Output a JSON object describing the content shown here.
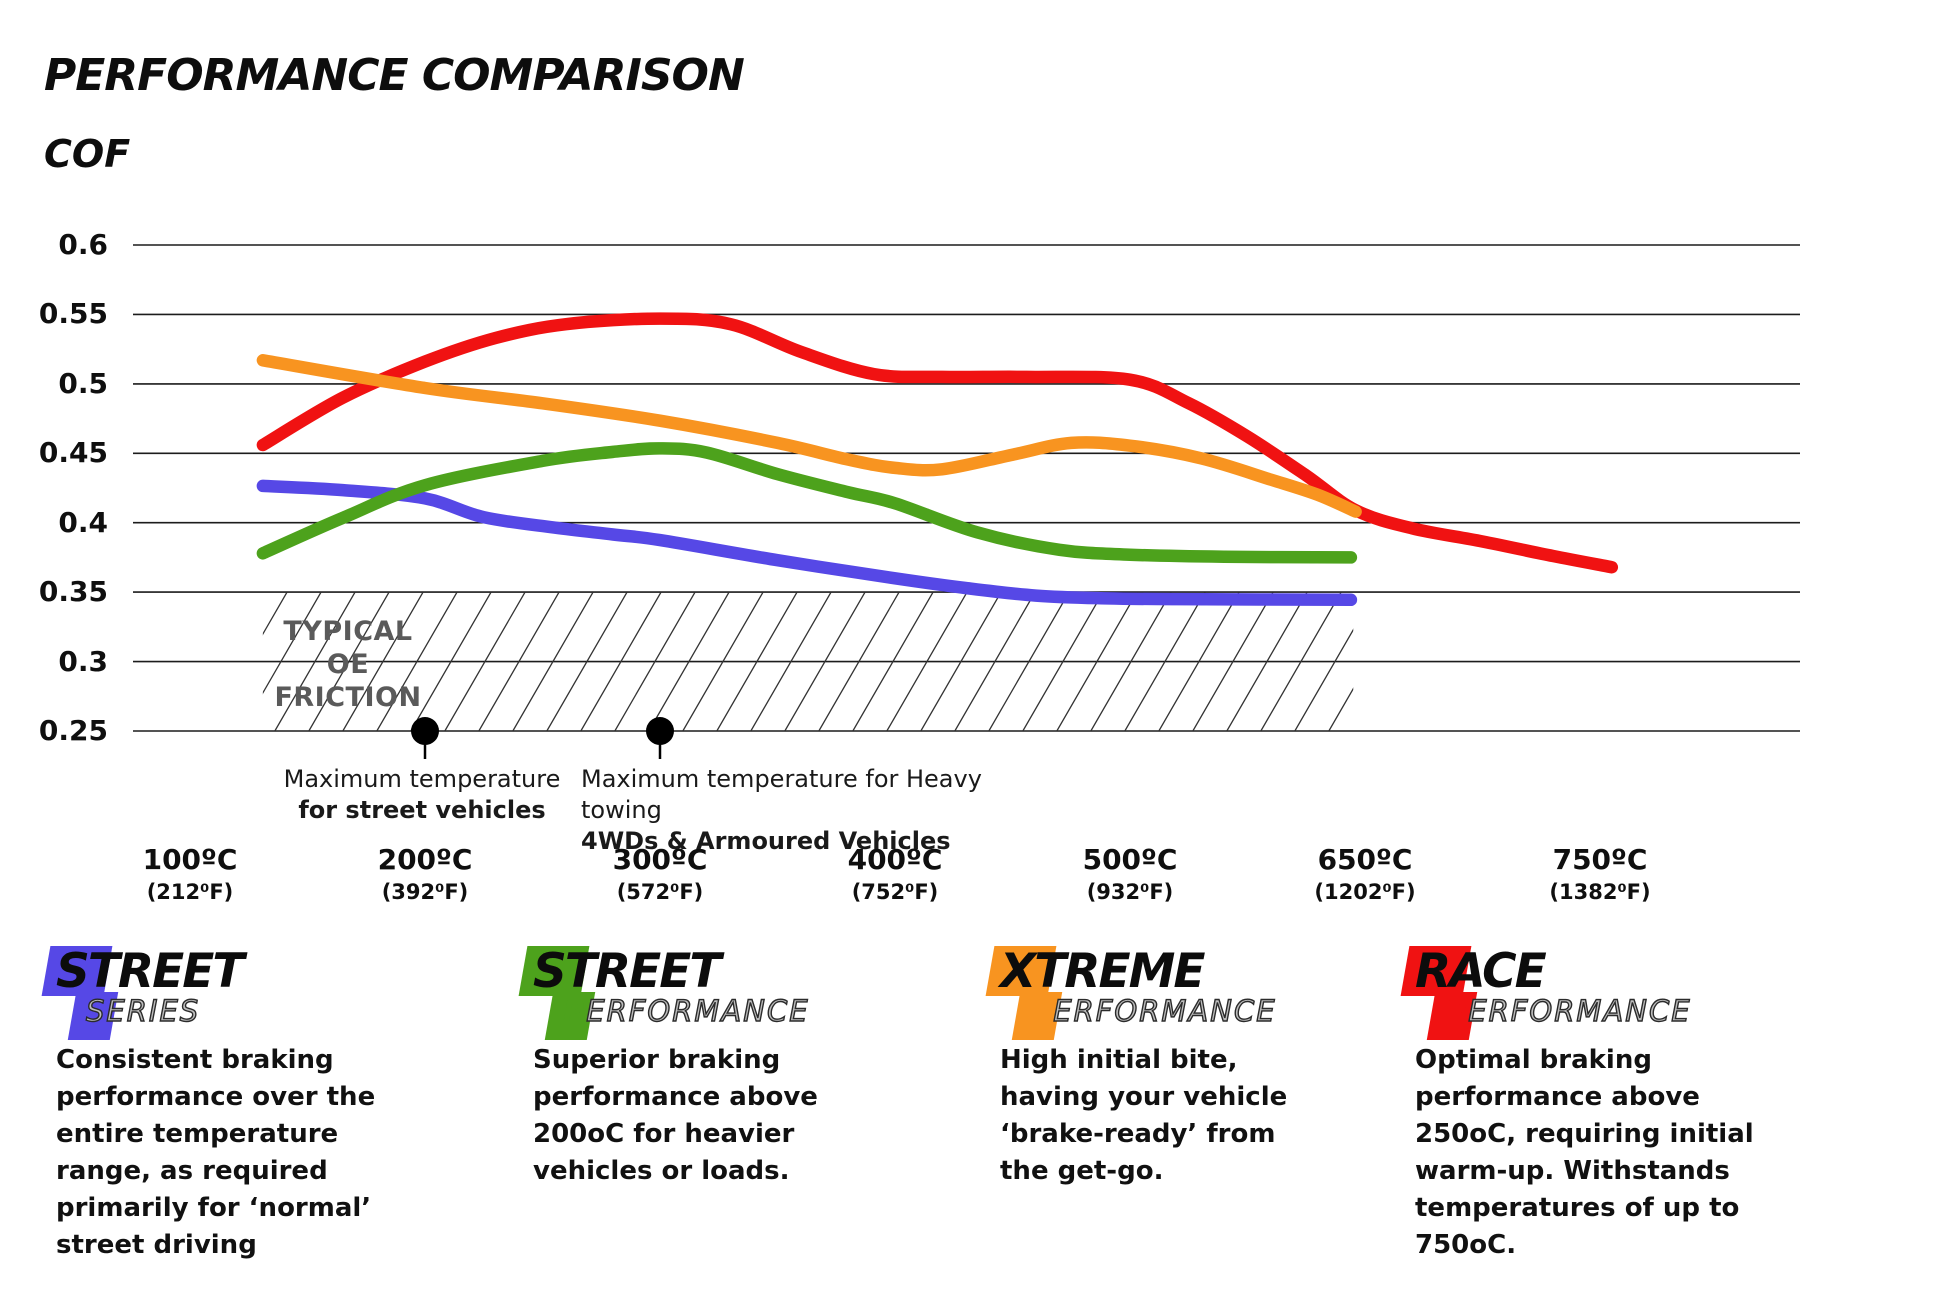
{
  "header": {
    "title": "PERFORMANCE COMPARISON",
    "cof_label": "COF"
  },
  "chart_data": {
    "type": "line",
    "title": "PERFORMANCE COMPARISON",
    "ylabel": "COF",
    "ylim": [
      0.25,
      0.625
    ],
    "grid": "horizontal",
    "y_ticks": [
      "0.6",
      "0.55",
      "0.5",
      "0.45",
      "0.4",
      "0.35",
      "0.3",
      "0.25"
    ],
    "y_tick_values": [
      0.6,
      0.55,
      0.5,
      0.45,
      0.4,
      0.35,
      0.3,
      0.25
    ],
    "x_categories": [
      {
        "c": "100ºC",
        "f": "(212⁰F)"
      },
      {
        "c": "200ºC",
        "f": "(392⁰F)"
      },
      {
        "c": "300ºC",
        "f": "(572⁰F)"
      },
      {
        "c": "400ºC",
        "f": "(752⁰F)"
      },
      {
        "c": "500ºC",
        "f": "(932⁰F)"
      },
      {
        "c": "650ºC",
        "f": "(1202⁰F)"
      },
      {
        "c": "750ºC",
        "f": "(1382⁰F)"
      }
    ],
    "series": [
      {
        "name": "Street Series",
        "color": "#5648e6",
        "points": [
          [
            0.31,
            0.4265
          ],
          [
            0.65,
            0.4235
          ],
          [
            1.0,
            0.4175
          ],
          [
            1.25,
            0.404
          ],
          [
            1.55,
            0.3965
          ],
          [
            1.8,
            0.3915
          ],
          [
            2.0,
            0.3875
          ],
          [
            2.5,
            0.373
          ],
          [
            3.0,
            0.36
          ],
          [
            3.3,
            0.353
          ],
          [
            3.6,
            0.3475
          ],
          [
            3.9,
            0.3455
          ],
          [
            4.2,
            0.345
          ],
          [
            4.94,
            0.3445
          ]
        ]
      },
      {
        "name": "Street Performance",
        "color": "#4da21c",
        "points": [
          [
            0.31,
            0.378
          ],
          [
            0.65,
            0.4035
          ],
          [
            1.0,
            0.427
          ],
          [
            1.5,
            0.4445
          ],
          [
            1.8,
            0.451
          ],
          [
            2.0,
            0.4535
          ],
          [
            2.2,
            0.4505
          ],
          [
            2.5,
            0.435
          ],
          [
            2.8,
            0.422
          ],
          [
            3.0,
            0.414
          ],
          [
            3.35,
            0.393
          ],
          [
            3.7,
            0.3805
          ],
          [
            4.0,
            0.377
          ],
          [
            4.4,
            0.3755
          ],
          [
            4.94,
            0.375
          ]
        ]
      },
      {
        "name": "Race Performance",
        "color": "#f01212",
        "points": [
          [
            0.31,
            0.456
          ],
          [
            0.65,
            0.49
          ],
          [
            1.0,
            0.516
          ],
          [
            1.3,
            0.533
          ],
          [
            1.6,
            0.543
          ],
          [
            2.0,
            0.547
          ],
          [
            2.3,
            0.543
          ],
          [
            2.6,
            0.523
          ],
          [
            2.91,
            0.507
          ],
          [
            3.2,
            0.505
          ],
          [
            3.56,
            0.505
          ],
          [
            4.0,
            0.503
          ],
          [
            4.25,
            0.486
          ],
          [
            4.5,
            0.462
          ],
          [
            4.75,
            0.434
          ],
          [
            4.96,
            0.409
          ],
          [
            5.2,
            0.396
          ],
          [
            5.5,
            0.3865
          ],
          [
            5.8,
            0.376
          ],
          [
            6.05,
            0.368
          ]
        ]
      },
      {
        "name": "Xtreme Performance",
        "color": "#f89420",
        "points": [
          [
            0.31,
            0.517
          ],
          [
            1.0,
            0.497
          ],
          [
            1.5,
            0.486
          ],
          [
            2.0,
            0.4735
          ],
          [
            2.5,
            0.4575
          ],
          [
            2.8,
            0.4455
          ],
          [
            3.0,
            0.4395
          ],
          [
            3.2,
            0.4385
          ],
          [
            3.5,
            0.449
          ],
          [
            3.75,
            0.4575
          ],
          [
            4.0,
            0.4555
          ],
          [
            4.3,
            0.4465
          ],
          [
            4.6,
            0.431
          ],
          [
            4.8,
            0.42
          ],
          [
            4.96,
            0.408
          ]
        ]
      }
    ],
    "oe_band": {
      "label_line1": "TYPICAL OE",
      "label_line2": "FRICTION",
      "v_top": 0.35,
      "v_bottom": 0.25,
      "u_start": 0.31,
      "u_end": 4.95
    },
    "annotations": [
      {
        "u": 1.0,
        "v": 0.25,
        "line1": "Maximum temperature",
        "line2": "for street vehicles"
      },
      {
        "u": 2.0,
        "v": 0.25,
        "line1": "Maximum temperature for Heavy towing",
        "line2": "4WDs & Armoured Vehicles"
      }
    ]
  },
  "legend": {
    "items": [
      {
        "line1": "STREET",
        "line2_first": "S",
        "line2_rest": "ERIES",
        "color": "#5648e6",
        "desc": "Consistent braking performance over the entire temperature range, as required primarily for ‘normal’ street driving"
      },
      {
        "line1": "STREET",
        "line2_first": "P",
        "line2_rest": "ERFORMANCE",
        "color": "#4da21c",
        "desc": "Superior braking performance above 200oC for heavier vehicles or loads."
      },
      {
        "line1": "XTREME",
        "line2_first": "P",
        "line2_rest": "ERFORMANCE",
        "color": "#f89420",
        "desc": "High initial bite, having your vehicle ‘brake-ready’ from the get-go."
      },
      {
        "line1": "RACE",
        "line2_first": "P",
        "line2_rest": "ERFORMANCE",
        "color": "#f01212",
        "desc": "Optimal braking performance above 250oC, requiring initial warm-up. Withstands temperatures of up to 750oC."
      }
    ]
  }
}
